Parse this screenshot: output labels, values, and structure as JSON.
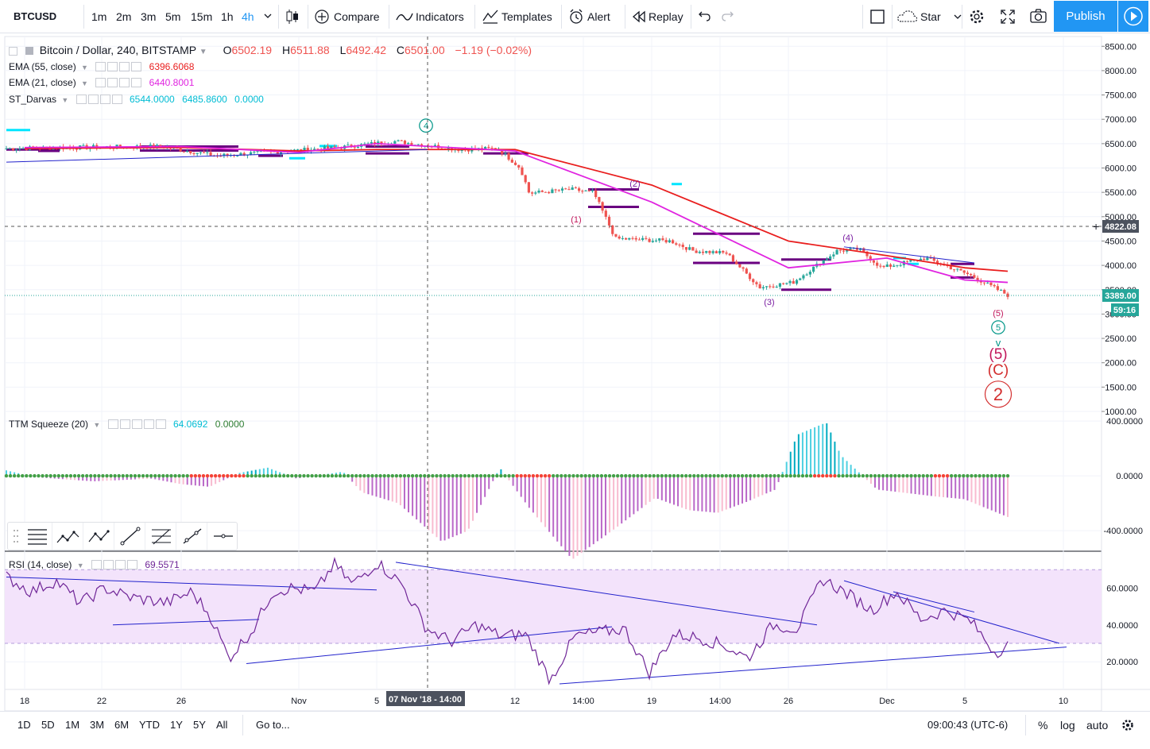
{
  "toolbar": {
    "symbol": "BTCUSD",
    "intervals": [
      "1m",
      "2m",
      "3m",
      "5m",
      "15m",
      "1h",
      "4h"
    ],
    "active_interval": "4h",
    "compare": "Compare",
    "indicators": "Indicators",
    "templates": "Templates",
    "alert": "Alert",
    "replay": "Replay",
    "star": "Star",
    "publish": "Publish",
    "icons": [
      "candles-icon",
      "plus-circle-icon",
      "indicators-icon",
      "templates-icon",
      "alarm-clock-icon",
      "replay-icon",
      "undo-icon",
      "redo-icon",
      "square-icon",
      "cloud-icon",
      "gear-icon",
      "fullscreen-icon",
      "camera-icon",
      "play-icon"
    ]
  },
  "legend": {
    "title": "Bitcoin / Dollar, 240, BITSTAMP",
    "open_label": "O",
    "open": "6502.19",
    "high_label": "H",
    "high": "6511.88",
    "low_label": "L",
    "low": "6492.42",
    "close_label": "C",
    "close": "6501.00",
    "change": "−1.19 (−0.02%)",
    "ema55": {
      "name": "EMA (55, close)",
      "value": "6396.6068"
    },
    "ema21": {
      "name": "EMA (21, close)",
      "value": "6440.8001"
    },
    "darvas": {
      "name": "ST_Darvas",
      "v1": "6544.0000",
      "v2": "6485.8600",
      "v3": "0.0000"
    },
    "ttm": {
      "name": "TTM Squeeze (20)",
      "v1": "64.0692",
      "v2": "0.0000"
    },
    "rsi": {
      "name": "RSI (14, close)",
      "value": "69.5571"
    }
  },
  "colors": {
    "up": "#26a69a",
    "down": "#ef5350",
    "ema55": "#e91e1e",
    "ema21": "#e024e0",
    "darvas": "#6a0080",
    "darvas_break": "#00e5ff",
    "trend": "#2222cc",
    "rsi": "#6f2597",
    "rsi_band": "#f3e3fb",
    "squeeze_on": "#f44336",
    "squeeze_off": "#43a047"
  },
  "chart_data": [
    {
      "type": "line",
      "panel": "price",
      "ylim": [
        1000,
        8700
      ],
      "y_ticks": [
        "8500.00",
        "8000.00",
        "7500.00",
        "7000.00",
        "6500.00",
        "6000.00",
        "5500.00",
        "5000.00",
        "4500.00",
        "4000.00",
        "3500.00",
        "3000.00",
        "2500.00",
        "2000.00",
        "1500.00",
        "1000.00"
      ],
      "x_tick_labels": [
        "18",
        "22",
        "26",
        "Nov",
        "5",
        "07 Nov '18 - 14:00",
        "12",
        "14:00",
        "19",
        "14:00",
        "26",
        "Dec",
        "5",
        "10"
      ],
      "crosshair_price": "4822.08",
      "last_price": "3389.00",
      "countdown": "59:16",
      "series": [
        {
          "name": "EMA (55, close)",
          "x": [
            "18",
            "26",
            "Nov",
            "5",
            "12",
            "19",
            "26",
            "Dec",
            "5"
          ],
          "values": [
            6400,
            6420,
            6350,
            6380,
            6380,
            5650,
            4500,
            4200,
            3950
          ]
        },
        {
          "name": "EMA (21, close)",
          "x": [
            "18",
            "26",
            "Nov",
            "5",
            "12",
            "19",
            "26",
            "Dec",
            "5"
          ],
          "values": [
            6420,
            6440,
            6320,
            6500,
            6350,
            5300,
            3950,
            4150,
            3700
          ]
        }
      ],
      "wave_labels": [
        "4",
        "(1)",
        "(2)",
        "(3)",
        "(4)",
        "(5)",
        "5",
        "(5)",
        "(C)",
        "2"
      ]
    },
    {
      "type": "bar",
      "panel": "TTM Squeeze (20)",
      "ylim": [
        -550,
        470
      ],
      "y_ticks": [
        "400.0000",
        "0.0000",
        "-400.0000"
      ]
    },
    {
      "type": "line",
      "panel": "RSI (14, close)",
      "ylim": [
        5,
        80
      ],
      "y_ticks": [
        "60.0000",
        "40.0000",
        "20.0000"
      ],
      "band": [
        30,
        70
      ]
    }
  ],
  "bottombar": {
    "ranges": [
      "1D",
      "5D",
      "1M",
      "3M",
      "6M",
      "YTD",
      "1Y",
      "5Y",
      "All"
    ],
    "goto": "Go to...",
    "clock": "09:00:43 (UTC-6)",
    "percent": "%",
    "log": "log",
    "auto": "auto"
  }
}
